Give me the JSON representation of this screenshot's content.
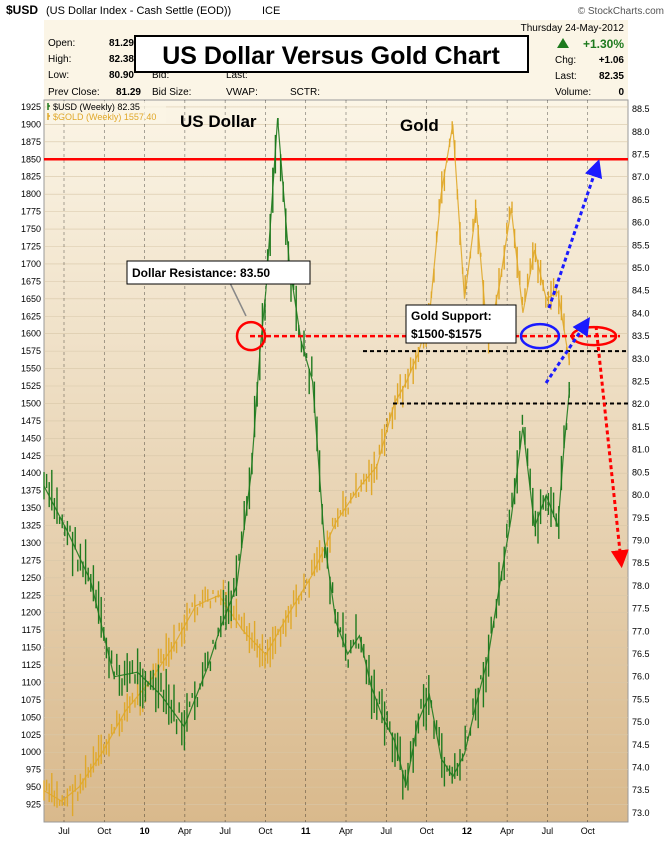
{
  "header": {
    "symbol": "$USD",
    "description": "(US Dollar Index - Cash Settle (EOD))",
    "exchange": "ICE",
    "date": "Thursday  24-May-2012",
    "watermark": "© StockCharts.com"
  },
  "quote": {
    "open_label": "Open:",
    "open": "81.29",
    "high_label": "High:",
    "high": "82.38",
    "low_label": "Low:",
    "low": "80.90",
    "prev_close_label": "Prev Close:",
    "prev_close": "81.29",
    "bid_label": "Bid:",
    "bid_size_label": "Bid Size:",
    "last_label_mid": "Last:",
    "vwap_label": "VWAP:",
    "sctr_label": "SCTR:",
    "change_pct": "+1.30%",
    "chg_label": "Chg:",
    "chg": "+1.06",
    "last_label": "Last:",
    "last": "82.35",
    "volume_label": "Volume:",
    "volume": "0"
  },
  "overlay_title": "US Dollar Versus Gold Chart",
  "legend": {
    "usd": "$USD (Weekly) 82.35",
    "gold": "$GOLD (Weekly) 1557.40"
  },
  "annotations": {
    "us_dollar": "US Dollar",
    "gold": "Gold",
    "dollar_resistance": "Dollar Resistance: 83.50",
    "gold_support_line1": "Gold Support:",
    "gold_support_line2": "$1500-$1575"
  },
  "colors": {
    "usd": "#1e7a1e",
    "gold": "#e0a82a",
    "resistance_line": "#ff0000",
    "dashed_red": "#ff0000",
    "dashed_blue": "#1a1aff",
    "dashed_black": "#000000",
    "background_top": "#fbf5e6",
    "background_bottom": "#d9b98c"
  },
  "chart_data": {
    "type": "line",
    "x_ticks": [
      "Jul",
      "Oct",
      "10",
      "Apr",
      "Jul",
      "Oct",
      "11",
      "Apr",
      "Jul",
      "Oct",
      "12",
      "Apr",
      "Jul",
      "Oct"
    ],
    "left_axis": {
      "ticks": [
        1925,
        1900,
        1875,
        1850,
        1825,
        1800,
        1775,
        1750,
        1725,
        1700,
        1675,
        1650,
        1625,
        1600,
        1575,
        1550,
        1525,
        1500,
        1475,
        1450,
        1425,
        1400,
        1375,
        1350,
        1325,
        1300,
        1275,
        1250,
        1225,
        1200,
        1175,
        1150,
        1125,
        1100,
        1075,
        1050,
        1025,
        1000,
        975,
        950,
        925
      ],
      "range": [
        900,
        1935
      ]
    },
    "right_axis": {
      "ticks": [
        88.5,
        88.0,
        87.5,
        87.0,
        86.5,
        86.0,
        85.5,
        85.0,
        84.5,
        84.0,
        83.5,
        83.0,
        82.5,
        82.0,
        81.5,
        81.0,
        80.5,
        80.0,
        79.5,
        79.0,
        78.5,
        78.0,
        77.5,
        77.0,
        76.5,
        76.0,
        75.5,
        75.0,
        74.5,
        74.0,
        73.5,
        73.0
      ],
      "range": [
        72.8,
        88.7
      ]
    },
    "series": [
      {
        "name": "$USD (Weekly) 82.35",
        "axis": "right",
        "x": [
          0,
          0.04,
          0.08,
          0.12,
          0.16,
          0.2,
          0.24,
          0.28,
          0.3,
          0.33,
          0.355,
          0.37,
          0.38,
          0.4,
          0.42,
          0.44,
          0.46,
          0.48,
          0.5,
          0.52,
          0.54,
          0.56,
          0.58,
          0.6,
          0.62,
          0.64,
          0.66,
          0.68,
          0.7,
          0.72,
          0.74,
          0.76,
          0.78,
          0.8,
          0.82,
          0.84,
          0.86,
          0.88,
          0.89,
          0.9
        ],
        "values": [
          80.2,
          79.2,
          78.1,
          76.0,
          76.1,
          75.6,
          74.9,
          76.2,
          77.0,
          78.0,
          80.5,
          83.2,
          84.5,
          88.3,
          85.1,
          83.4,
          82.5,
          79.0,
          77.2,
          76.5,
          76.9,
          75.8,
          75.1,
          74.6,
          73.6,
          75.0,
          75.6,
          74.2,
          73.8,
          74.3,
          75.4,
          76.4,
          78.0,
          79.5,
          81.5,
          79.3,
          80.0,
          79.3,
          81.0,
          82.35
        ]
      },
      {
        "name": "$GOLD (Weekly) 1557.40",
        "axis": "left",
        "x": [
          0,
          0.03,
          0.06,
          0.1,
          0.14,
          0.18,
          0.22,
          0.26,
          0.3,
          0.34,
          0.38,
          0.42,
          0.46,
          0.5,
          0.54,
          0.57,
          0.6,
          0.62,
          0.64,
          0.66,
          0.68,
          0.7,
          0.72,
          0.74,
          0.76,
          0.78,
          0.8,
          0.82,
          0.84,
          0.86,
          0.88,
          0.9
        ],
        "values": [
          945,
          930,
          950,
          1000,
          1060,
          1100,
          1150,
          1210,
          1225,
          1175,
          1140,
          1200,
          1255,
          1330,
          1380,
          1410,
          1500,
          1530,
          1570,
          1625,
          1800,
          1900,
          1650,
          1780,
          1590,
          1670,
          1780,
          1630,
          1720,
          1650,
          1660,
          1557.4
        ]
      }
    ],
    "annotation_levels": {
      "resistance_line": 1850,
      "dollar_resistance": 83.5,
      "gold_support_range": [
        1500,
        1575
      ]
    }
  }
}
